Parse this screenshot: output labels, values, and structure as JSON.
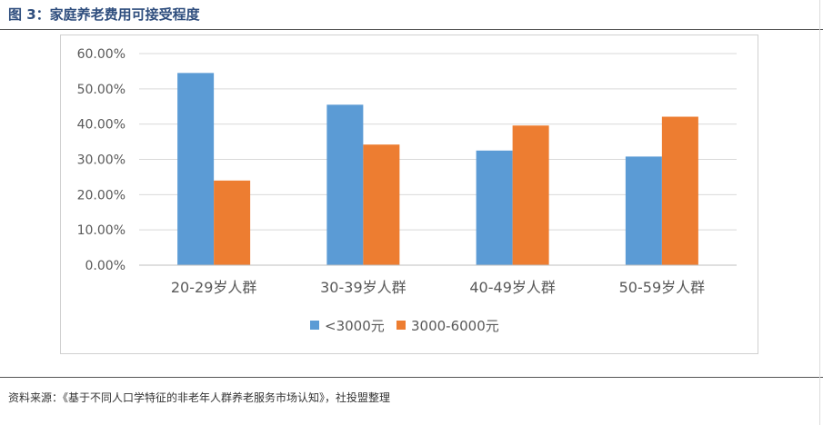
{
  "figure": {
    "title": "图 3：家庭养老费用可接受程度",
    "source": "资料来源：《基于不同人口学特征的非老年人群养老服务市场认知》，社投盟整理"
  },
  "chart_data": {
    "type": "bar",
    "categories": [
      "20-29岁人群",
      "30-39岁人群",
      "40-49岁人群",
      "50-59岁人群"
    ],
    "series": [
      {
        "name": "<3000元",
        "color": "#5b9bd5",
        "values": [
          54.5,
          45.5,
          32.5,
          30.8
        ]
      },
      {
        "name": "3000-6000元",
        "color": "#ed7d31",
        "values": [
          24.0,
          34.2,
          39.6,
          42.1
        ]
      }
    ],
    "ylim": [
      0,
      60
    ],
    "yticks": [
      0,
      10,
      20,
      30,
      40,
      50,
      60
    ],
    "ytick_labels": [
      "0.00%",
      "10.00%",
      "20.00%",
      "30.00%",
      "40.00%",
      "50.00%",
      "60.00%"
    ],
    "xlabel": "",
    "ylabel": "",
    "grid": true,
    "legend_position": "bottom"
  }
}
